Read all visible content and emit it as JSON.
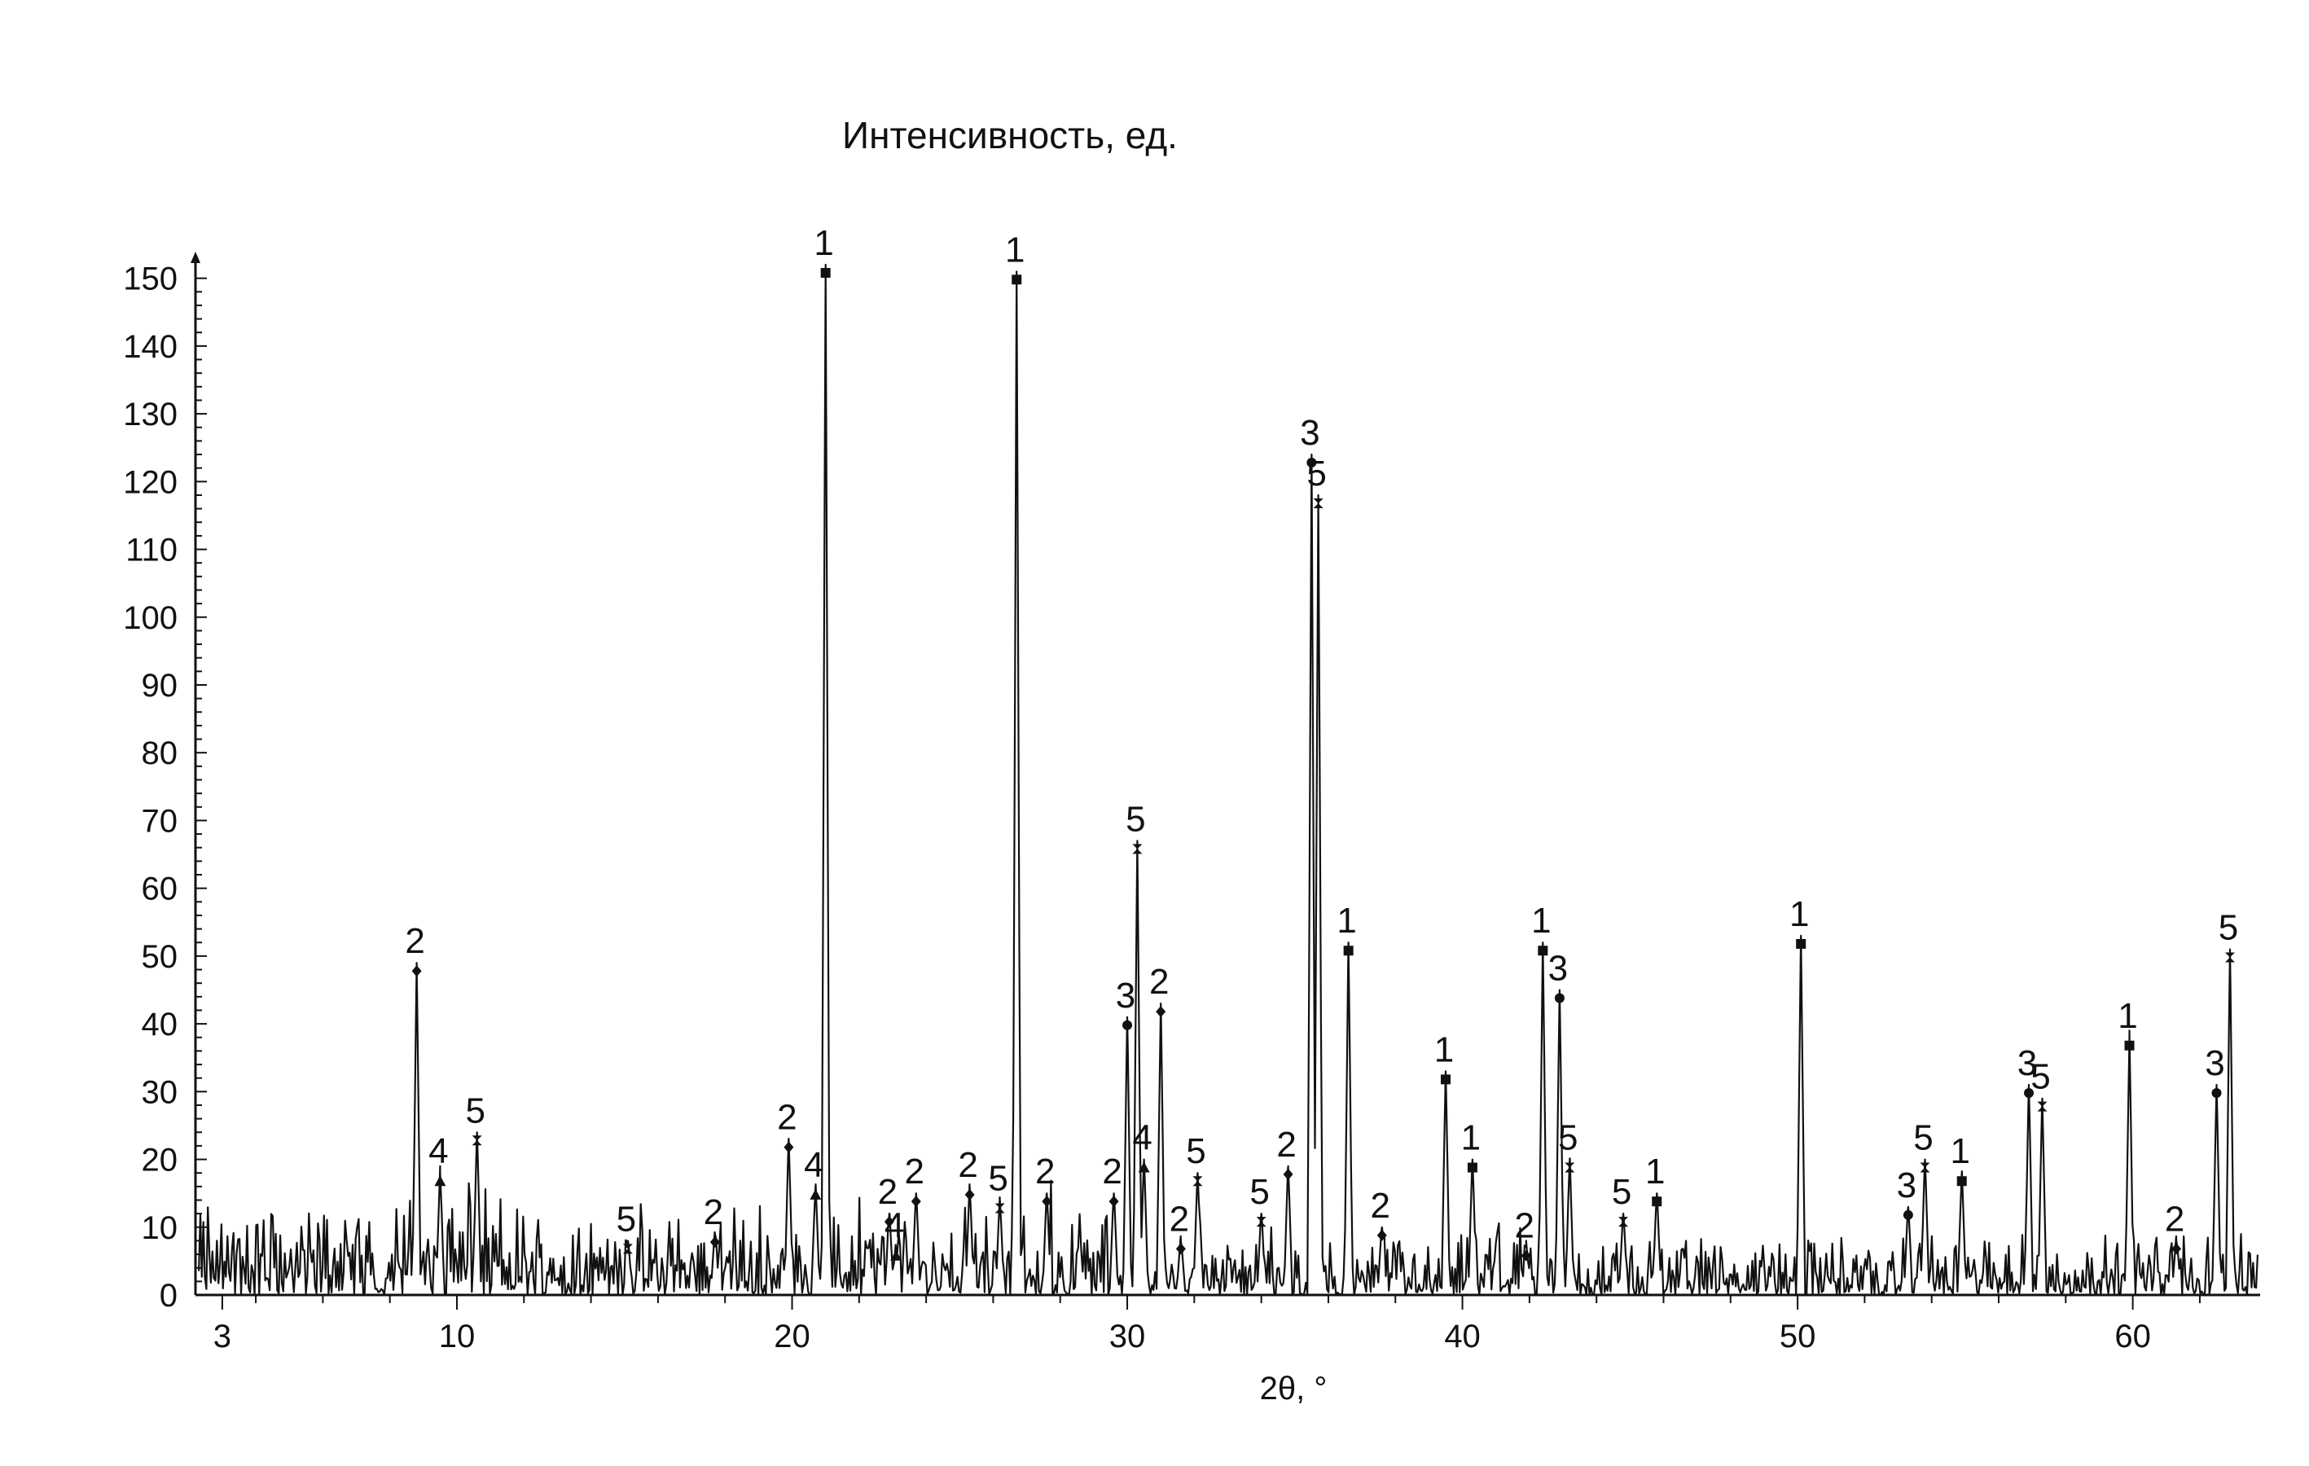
{
  "chart_data": {
    "type": "line",
    "title": "Интенсивность, ед.",
    "xlabel": "2θ, °",
    "ylabel": "",
    "xlim": [
      2.2,
      63.8
    ],
    "ylim": [
      0,
      152
    ],
    "xticks": [
      3,
      10,
      20,
      30,
      40,
      50,
      60
    ],
    "yticks": [
      0,
      10,
      20,
      30,
      40,
      50,
      60,
      70,
      80,
      90,
      100,
      110,
      120,
      130,
      140,
      150
    ],
    "colors": {
      "line": "#111111",
      "axis": "#111111",
      "background": "#ffffff"
    },
    "grid": false,
    "legend": "none",
    "peaks": [
      {
        "x": 8.8,
        "y": 49,
        "label": "2"
      },
      {
        "x": 9.5,
        "y": 18,
        "label": "4"
      },
      {
        "x": 10.6,
        "y": 24,
        "label": "5"
      },
      {
        "x": 15.1,
        "y": 8,
        "label": "5"
      },
      {
        "x": 17.7,
        "y": 9,
        "label": "2"
      },
      {
        "x": 19.9,
        "y": 23,
        "label": "2"
      },
      {
        "x": 20.7,
        "y": 16,
        "label": "4"
      },
      {
        "x": 21.0,
        "y": 152,
        "label": "1"
      },
      {
        "x": 22.9,
        "y": 12,
        "label": "2"
      },
      {
        "x": 23.1,
        "y": 7,
        "label": "4"
      },
      {
        "x": 23.7,
        "y": 15,
        "label": "2"
      },
      {
        "x": 25.3,
        "y": 16,
        "label": "2"
      },
      {
        "x": 26.2,
        "y": 14,
        "label": "5"
      },
      {
        "x": 26.7,
        "y": 151,
        "label": "1"
      },
      {
        "x": 27.6,
        "y": 15,
        "label": "2"
      },
      {
        "x": 29.6,
        "y": 15,
        "label": "2"
      },
      {
        "x": 30.0,
        "y": 41,
        "label": "3"
      },
      {
        "x": 30.3,
        "y": 67,
        "label": "5"
      },
      {
        "x": 30.5,
        "y": 20,
        "label": "4"
      },
      {
        "x": 31.0,
        "y": 43,
        "label": "2"
      },
      {
        "x": 31.6,
        "y": 8,
        "label": "2"
      },
      {
        "x": 32.1,
        "y": 18,
        "label": "5"
      },
      {
        "x": 34.0,
        "y": 12,
        "label": "5"
      },
      {
        "x": 34.8,
        "y": 19,
        "label": "2"
      },
      {
        "x": 35.5,
        "y": 124,
        "label": "3"
      },
      {
        "x": 35.7,
        "y": 118,
        "label": "5"
      },
      {
        "x": 36.6,
        "y": 52,
        "label": "1"
      },
      {
        "x": 37.6,
        "y": 10,
        "label": "2"
      },
      {
        "x": 39.5,
        "y": 33,
        "label": "1"
      },
      {
        "x": 40.3,
        "y": 20,
        "label": "1"
      },
      {
        "x": 41.9,
        "y": 7,
        "label": "2"
      },
      {
        "x": 42.4,
        "y": 52,
        "label": "1"
      },
      {
        "x": 42.9,
        "y": 45,
        "label": "3"
      },
      {
        "x": 43.2,
        "y": 20,
        "label": "5"
      },
      {
        "x": 44.8,
        "y": 12,
        "label": "5"
      },
      {
        "x": 45.8,
        "y": 15,
        "label": "1"
      },
      {
        "x": 50.1,
        "y": 53,
        "label": "1"
      },
      {
        "x": 53.3,
        "y": 13,
        "label": "3"
      },
      {
        "x": 53.8,
        "y": 20,
        "label": "5"
      },
      {
        "x": 54.9,
        "y": 18,
        "label": "1"
      },
      {
        "x": 56.9,
        "y": 31,
        "label": "3"
      },
      {
        "x": 57.3,
        "y": 29,
        "label": "5"
      },
      {
        "x": 59.9,
        "y": 38,
        "label": "1"
      },
      {
        "x": 61.3,
        "y": 8,
        "label": "2"
      },
      {
        "x": 62.5,
        "y": 31,
        "label": "3"
      },
      {
        "x": 62.9,
        "y": 51,
        "label": "5"
      }
    ]
  }
}
